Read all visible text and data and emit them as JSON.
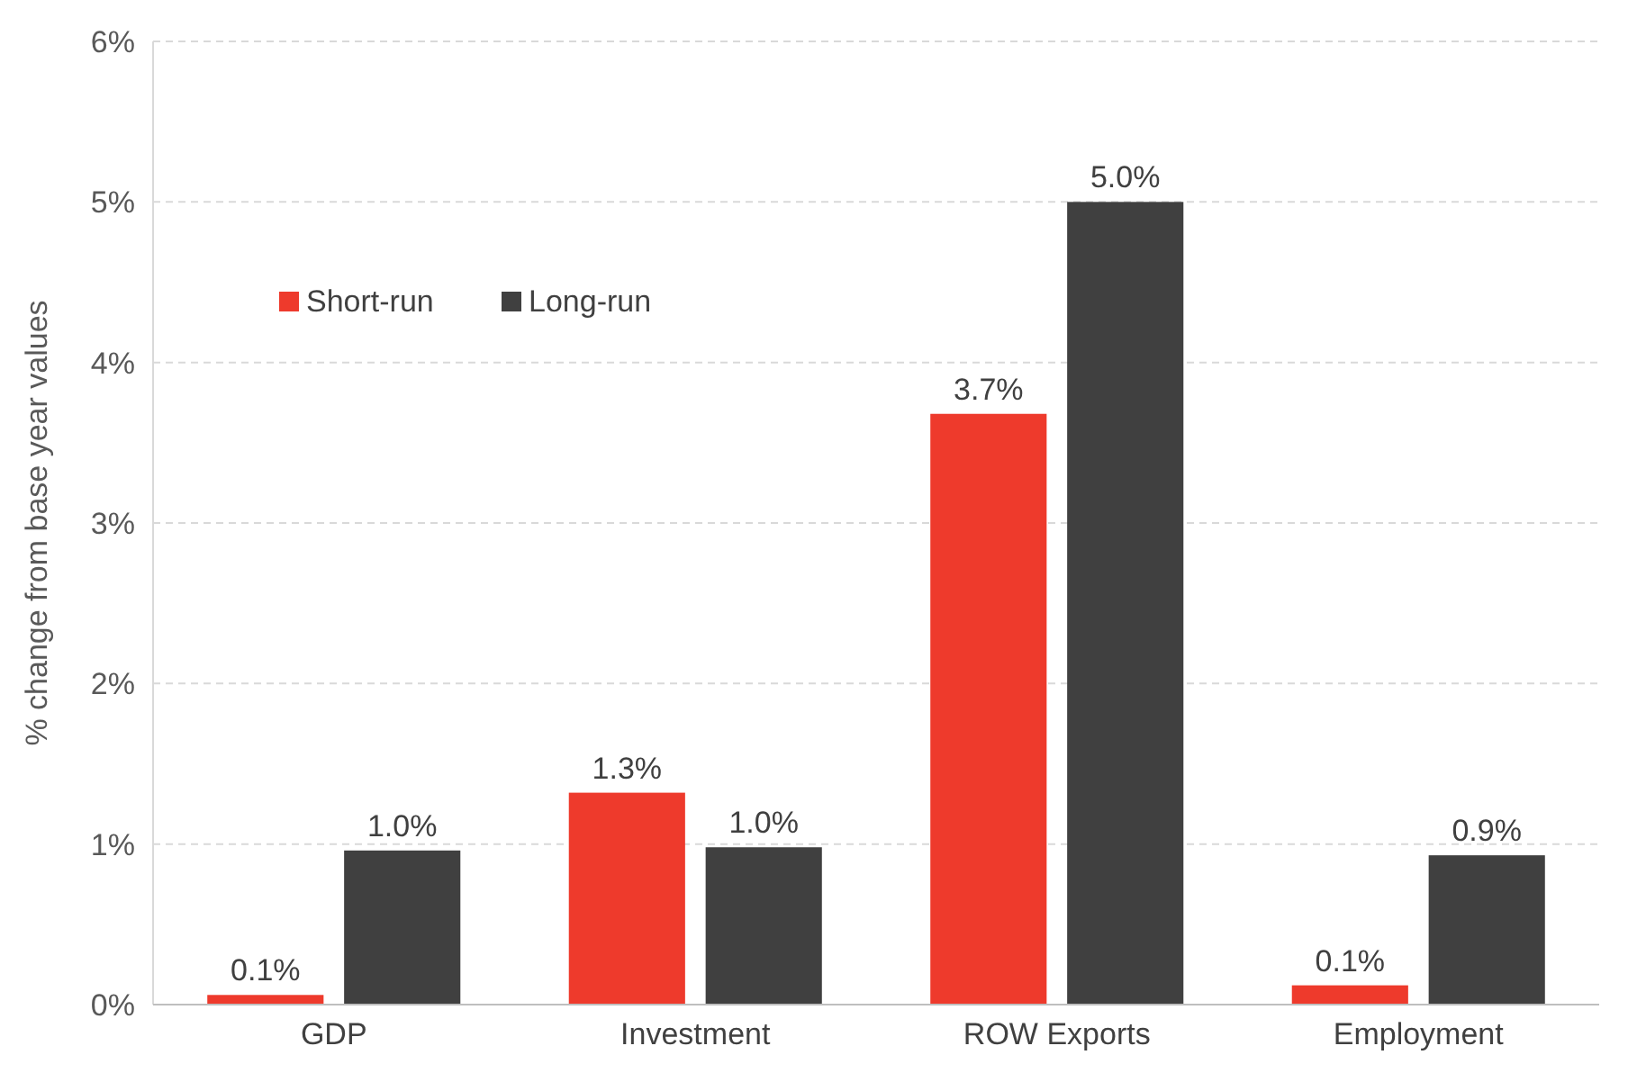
{
  "chart_data": {
    "type": "bar",
    "ylabel": "% change from base year values",
    "categories": [
      "GDP",
      "Investment",
      "ROW Exports",
      "Employment"
    ],
    "series": [
      {
        "name": "Short-run",
        "color": "#ee3a2c",
        "values": [
          0.06,
          1.32,
          3.68,
          0.12
        ],
        "value_labels": [
          "0.1%",
          "1.3%",
          "3.7%",
          "0.1%"
        ]
      },
      {
        "name": "Long-run",
        "color": "#404040",
        "values": [
          0.96,
          0.98,
          5.0,
          0.93
        ],
        "value_labels": [
          "1.0%",
          "1.0%",
          "5.0%",
          "0.9%"
        ]
      }
    ],
    "ylim": [
      0,
      6
    ],
    "yticks": [
      {
        "value": 0,
        "label": "0%"
      },
      {
        "value": 1,
        "label": "1%"
      },
      {
        "value": 2,
        "label": "2%"
      },
      {
        "value": 3,
        "label": "3%"
      },
      {
        "value": 4,
        "label": "4%"
      },
      {
        "value": 5,
        "label": "5%"
      },
      {
        "value": 6,
        "label": "6%"
      }
    ],
    "grid": "y",
    "legend": "top left"
  }
}
